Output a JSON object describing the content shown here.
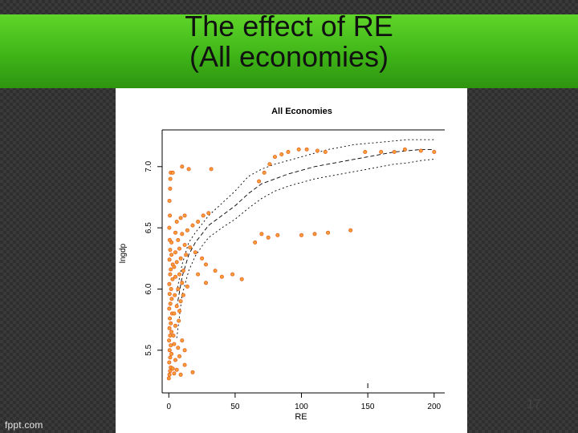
{
  "slide": {
    "title_line1": "The effect of RE",
    "title_line2": "(All economies)",
    "slide_number": "17",
    "watermark": "fppt.com"
  },
  "colors": {
    "band": "#3fb518",
    "point": "#e8601c",
    "point_fill": "#f5a03a"
  },
  "chart_data": {
    "type": "scatter",
    "title": "All Economies",
    "xlabel": "RE",
    "ylabel": "lngdp",
    "xlim": [
      -5,
      208
    ],
    "ylim": [
      5.23,
      7.3
    ],
    "xticks": [
      0,
      50,
      100,
      150,
      200
    ],
    "yticks": [
      5.5,
      6.0,
      6.5,
      7.0
    ],
    "grid": false,
    "legend": "none",
    "fit_line": {
      "x": [
        6,
        10,
        15,
        20,
        25,
        30,
        40,
        50,
        60,
        70,
        80,
        90,
        100,
        110,
        120,
        130,
        140,
        150,
        160,
        170,
        180,
        190,
        200
      ],
      "y": [
        5.85,
        6.1,
        6.28,
        6.38,
        6.45,
        6.52,
        6.6,
        6.68,
        6.78,
        6.86,
        6.9,
        6.94,
        6.97,
        7.0,
        7.02,
        7.04,
        7.06,
        7.08,
        7.1,
        7.12,
        7.13,
        7.14,
        7.14
      ]
    },
    "ci_upper": {
      "x": [
        6,
        10,
        15,
        20,
        25,
        30,
        40,
        50,
        60,
        70,
        80,
        90,
        100,
        110,
        120,
        130,
        140,
        150,
        160,
        170,
        180,
        190,
        200
      ],
      "y": [
        5.98,
        6.2,
        6.38,
        6.46,
        6.53,
        6.6,
        6.7,
        6.8,
        6.92,
        6.98,
        7.02,
        7.05,
        7.08,
        7.11,
        7.14,
        7.16,
        7.18,
        7.19,
        7.2,
        7.21,
        7.22,
        7.22,
        7.22
      ]
    },
    "ci_lower": {
      "x": [
        6,
        10,
        15,
        20,
        25,
        30,
        40,
        50,
        60,
        70,
        80,
        90,
        100,
        110,
        120,
        130,
        140,
        150,
        160,
        170,
        180,
        190,
        200
      ],
      "y": [
        5.6,
        5.95,
        6.15,
        6.27,
        6.35,
        6.42,
        6.5,
        6.57,
        6.66,
        6.74,
        6.8,
        6.84,
        6.87,
        6.9,
        6.92,
        6.94,
        6.96,
        6.98,
        7.0,
        7.02,
        7.03,
        7.05,
        7.06
      ]
    },
    "points": [
      [
        0,
        5.27
      ],
      [
        0.5,
        5.3
      ],
      [
        1,
        5.33
      ],
      [
        1.5,
        5.36
      ],
      [
        0.3,
        5.4
      ],
      [
        1,
        5.44
      ],
      [
        2,
        5.47
      ],
      [
        0.6,
        5.5
      ],
      [
        1.5,
        5.54
      ],
      [
        0.2,
        5.58
      ],
      [
        1,
        5.62
      ],
      [
        2,
        5.65
      ],
      [
        0.5,
        5.68
      ],
      [
        1.5,
        5.72
      ],
      [
        0.8,
        5.76
      ],
      [
        2.5,
        5.8
      ],
      [
        0.3,
        5.84
      ],
      [
        1.2,
        5.88
      ],
      [
        2.2,
        5.92
      ],
      [
        0.6,
        5.96
      ],
      [
        1.8,
        6.0
      ],
      [
        0.4,
        6.04
      ],
      [
        2.8,
        6.08
      ],
      [
        1,
        6.12
      ],
      [
        1.5,
        6.16
      ],
      [
        3,
        6.2
      ],
      [
        0.5,
        6.24
      ],
      [
        2,
        6.28
      ],
      [
        1,
        6.32
      ],
      [
        0.7,
        6.4
      ],
      [
        0.4,
        6.5
      ],
      [
        0.8,
        6.6
      ],
      [
        0.5,
        6.72
      ],
      [
        1,
        6.82
      ],
      [
        1.2,
        6.9
      ],
      [
        1.5,
        6.95
      ],
      [
        4,
        5.31
      ],
      [
        6,
        5.34
      ],
      [
        9,
        5.3
      ],
      [
        5,
        5.42
      ],
      [
        8,
        5.45
      ],
      [
        12,
        5.5
      ],
      [
        4,
        5.55
      ],
      [
        7,
        5.52
      ],
      [
        10,
        5.58
      ],
      [
        3.5,
        5.62
      ],
      [
        5,
        5.7
      ],
      [
        7.5,
        5.74
      ],
      [
        4,
        5.8
      ],
      [
        6,
        5.86
      ],
      [
        9,
        5.9
      ],
      [
        4.5,
        5.95
      ],
      [
        7,
        6.0
      ],
      [
        10,
        6.05
      ],
      [
        5,
        6.1
      ],
      [
        8,
        6.12
      ],
      [
        11,
        6.15
      ],
      [
        4,
        6.18
      ],
      [
        6,
        6.22
      ],
      [
        9,
        6.25
      ],
      [
        13,
        6.28
      ],
      [
        5,
        6.3
      ],
      [
        8,
        6.33
      ],
      [
        12,
        6.36
      ],
      [
        16,
        6.34
      ],
      [
        7,
        6.4
      ],
      [
        10,
        6.45
      ],
      [
        14,
        6.48
      ],
      [
        18,
        6.52
      ],
      [
        22,
        6.55
      ],
      [
        26,
        6.6
      ],
      [
        30,
        6.62
      ],
      [
        6,
        6.55
      ],
      [
        9,
        6.58
      ],
      [
        12,
        6.6
      ],
      [
        3,
        6.95
      ],
      [
        10,
        7.0
      ],
      [
        15,
        6.98
      ],
      [
        32,
        6.98
      ],
      [
        20,
        6.3
      ],
      [
        25,
        6.25
      ],
      [
        22,
        6.12
      ],
      [
        28,
        6.2
      ],
      [
        35,
        6.15
      ],
      [
        40,
        6.1
      ],
      [
        48,
        6.12
      ],
      [
        55,
        6.08
      ],
      [
        28,
        6.05
      ],
      [
        65,
        6.38
      ],
      [
        70,
        6.45
      ],
      [
        75,
        6.42
      ],
      [
        82,
        6.44
      ],
      [
        100,
        6.44
      ],
      [
        110,
        6.45
      ],
      [
        120,
        6.46
      ],
      [
        137,
        6.48
      ],
      [
        68,
        6.88
      ],
      [
        72,
        6.95
      ],
      [
        76,
        7.02
      ],
      [
        80,
        7.08
      ],
      [
        85,
        7.1
      ],
      [
        90,
        7.12
      ],
      [
        98,
        7.14
      ],
      [
        104,
        7.14
      ],
      [
        112,
        7.13
      ],
      [
        118,
        7.12
      ],
      [
        148,
        7.12
      ],
      [
        160,
        7.12
      ],
      [
        170,
        7.12
      ],
      [
        178,
        7.14
      ],
      [
        190,
        7.13
      ],
      [
        200,
        7.12
      ],
      [
        3,
        5.35
      ],
      [
        12,
        5.38
      ],
      [
        18,
        5.32
      ],
      [
        8,
        5.82
      ],
      [
        11,
        5.95
      ],
      [
        14,
        6.02
      ],
      [
        2,
        6.38
      ],
      [
        5,
        6.46
      ]
    ]
  }
}
